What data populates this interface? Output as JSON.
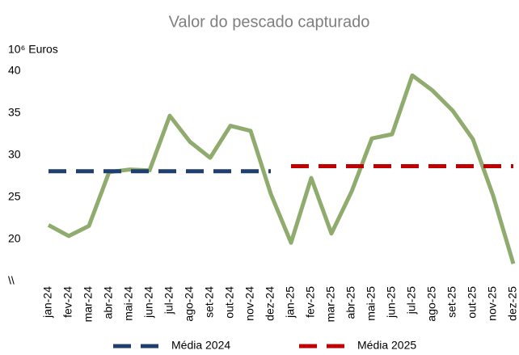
{
  "chart_data": {
    "type": "line",
    "title": "Valor do pescado capturado",
    "y_label": "10⁶ Euros",
    "categories": [
      "jan-24",
      "fev-24",
      "mar-24",
      "abr-24",
      "mai-24",
      "jun-24",
      "jul-24",
      "ago-24",
      "set-24",
      "out-24",
      "nov-24",
      "dez-24",
      "jan-25",
      "fev-25",
      "mar-25",
      "abr-25",
      "mai-25",
      "jun-25",
      "jul-25",
      "ago-25",
      "set-25",
      "out-25",
      "nov-25",
      "dez-25"
    ],
    "series": [
      {
        "color": "#8fac6e",
        "values": [
          21.7,
          20.4,
          21.6,
          28.0,
          28.3,
          28.2,
          34.7,
          31.6,
          29.7,
          33.5,
          32.9,
          25.4,
          19.6,
          27.3,
          20.7,
          25.7,
          32.0,
          32.5,
          39.5,
          37.7,
          35.3,
          31.9,
          25.2,
          17.1
        ]
      },
      {
        "name": "Média 2024",
        "color": "#1f3f6e",
        "dashed": true,
        "values": [
          28.1,
          28.1,
          28.1,
          28.1,
          28.1,
          28.1,
          28.1,
          28.1,
          28.1,
          28.1,
          28.1,
          28.1,
          null,
          null,
          null,
          null,
          null,
          null,
          null,
          null,
          null,
          null,
          null,
          null
        ]
      },
      {
        "name": "Média 2025",
        "color": "#c00000",
        "dashed": true,
        "values": [
          null,
          null,
          null,
          null,
          null,
          null,
          null,
          null,
          null,
          null,
          null,
          null,
          28.7,
          28.7,
          28.7,
          28.7,
          28.7,
          28.7,
          28.7,
          28.7,
          28.7,
          28.7,
          28.7,
          28.7
        ]
      }
    ],
    "ylim": [
      15,
      40
    ],
    "yticks": [
      {
        "value": 15,
        "label": "\\\\"
      },
      20,
      25,
      30,
      35,
      40
    ],
    "legend": "bottom"
  }
}
